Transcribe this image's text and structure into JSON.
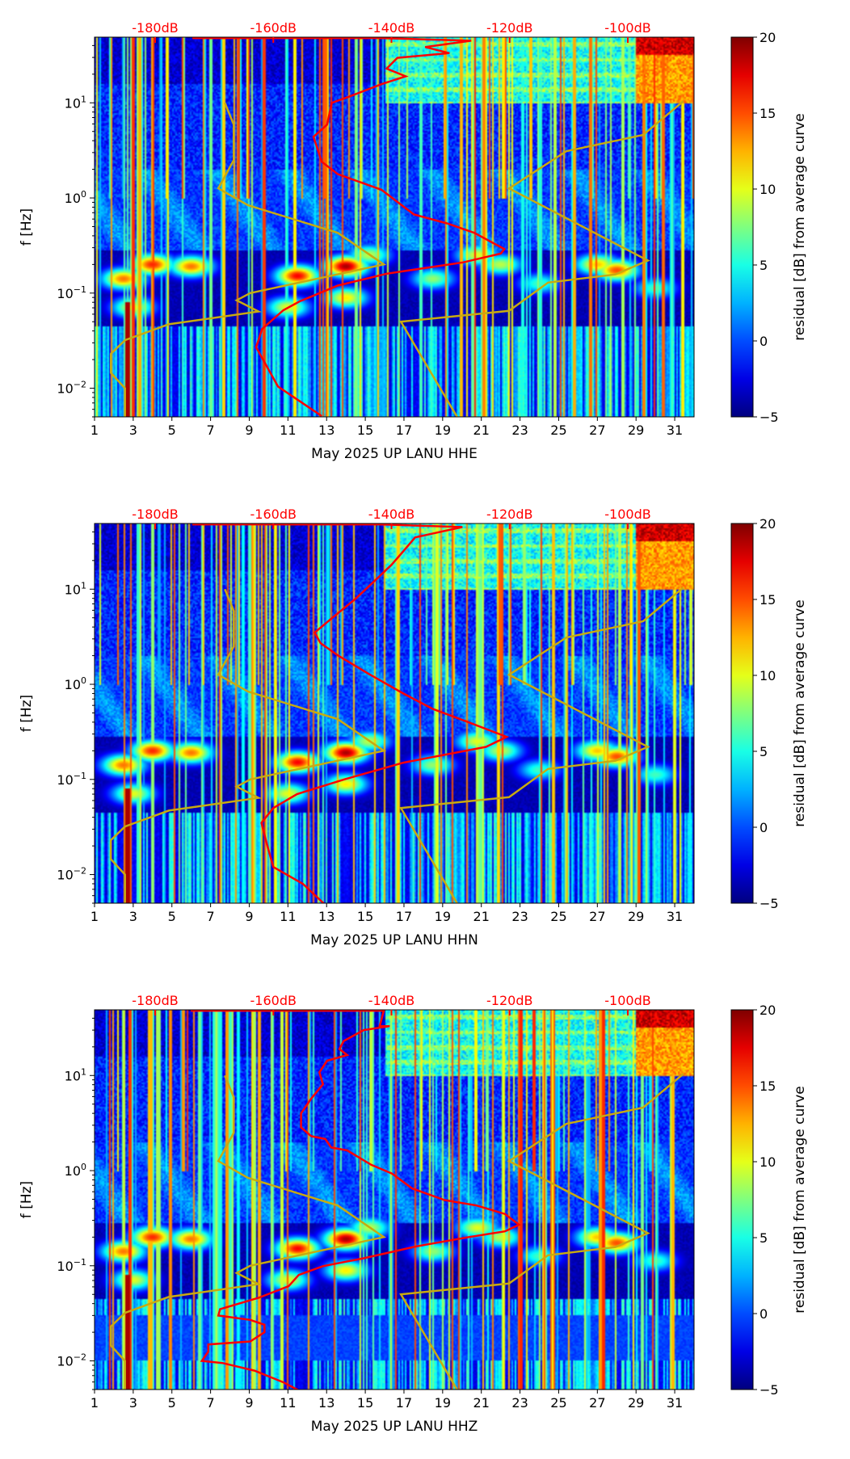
{
  "colors": {
    "nlnm_nhnm": "#c8aa10",
    "psd_curve": "#ff0000",
    "top_axis": "#ff0000",
    "axis": "#000000"
  },
  "axes_common": {
    "ylabel": "f [Hz]",
    "x_ticks": [
      "1",
      "3",
      "5",
      "7",
      "9",
      "11",
      "13",
      "15",
      "17",
      "19",
      "21",
      "23",
      "25",
      "27",
      "29",
      "31"
    ],
    "x_range_days": [
      1,
      32
    ],
    "y_range_hz": [
      0.005,
      49
    ],
    "y_scale": "log",
    "y_ticks": [
      {
        "base": "10",
        "exp": "−2",
        "value": 0.01
      },
      {
        "base": "10",
        "exp": "−1",
        "value": 0.1
      },
      {
        "base": "10",
        "exp": "0",
        "value": 1
      },
      {
        "base": "10",
        "exp": "1",
        "value": 10
      }
    ],
    "top_ticks": [
      {
        "label": "-180dB",
        "value": -180
      },
      {
        "label": "-160dB",
        "value": -160
      },
      {
        "label": "-140dB",
        "value": -140
      },
      {
        "label": "-120dB",
        "value": -120
      },
      {
        "label": "-100dB",
        "value": -100
      }
    ],
    "colorbar": {
      "label": "residual [dB] from average curve",
      "ticks": [
        "−5",
        "0",
        "5",
        "10",
        "15",
        "20"
      ],
      "values": [
        -5,
        0,
        5,
        10,
        15,
        20
      ],
      "range": [
        -5,
        20
      ],
      "colormap": "jet"
    }
  },
  "chart_data": [
    {
      "type": "heatmap",
      "title": "",
      "xlabel": "May 2025 UP LANU  HHE",
      "ylabel": "f [Hz]",
      "top_xlabel_unit": "dB",
      "low_noise_model": [
        [
          -168.2,
          10
        ],
        [
          -166.7,
          5.9
        ],
        [
          -166.7,
          2.5
        ],
        [
          -169.3,
          1.26
        ],
        [
          -164.3,
          0.84
        ],
        [
          -149.1,
          0.43
        ],
        [
          -141.3,
          0.2
        ],
        [
          -163.9,
          0.1
        ],
        [
          -166.2,
          0.084
        ],
        [
          -162.5,
          0.064
        ],
        [
          -177.7,
          0.047
        ],
        [
          -185.1,
          0.032
        ],
        [
          -187.5,
          0.023
        ],
        [
          -187.5,
          0.0145
        ],
        [
          -185.1,
          0.01
        ],
        [
          -185.1,
          0.005
        ]
      ],
      "high_noise_model": [
        [
          -90.6,
          10.4
        ],
        [
          -97.4,
          4.6
        ],
        [
          -110.4,
          3.1
        ],
        [
          -120.1,
          1.26
        ],
        [
          -96.6,
          0.22
        ],
        [
          -102.1,
          0.157
        ],
        [
          -113.5,
          0.129
        ],
        [
          -120.1,
          0.065
        ],
        [
          -138.4,
          0.05
        ],
        [
          -128.9,
          0.005
        ]
      ],
      "psd_curve": [
        [
          -173.7,
          48
        ],
        [
          -142,
          48
        ],
        [
          -126.5,
          45
        ],
        [
          -134.3,
          38.6
        ],
        [
          -130.2,
          33.3
        ],
        [
          -139,
          29.7
        ],
        [
          -140.8,
          22.9
        ],
        [
          -137.6,
          19
        ],
        [
          -141.7,
          15.7
        ],
        [
          -147.2,
          11.6
        ],
        [
          -150.1,
          10
        ],
        [
          -150.9,
          5.9
        ],
        [
          -153.2,
          4.4
        ],
        [
          -151.8,
          2.4
        ],
        [
          -149.1,
          1.78
        ],
        [
          -141.7,
          1.22
        ],
        [
          -136.2,
          0.67
        ],
        [
          -130.6,
          0.54
        ],
        [
          -126,
          0.43
        ],
        [
          -120.9,
          0.29
        ],
        [
          -121.5,
          0.26
        ],
        [
          -127.9,
          0.21
        ],
        [
          -140.8,
          0.16
        ],
        [
          -149.1,
          0.12
        ],
        [
          -155.5,
          0.082
        ],
        [
          -158.3,
          0.066
        ],
        [
          -161.9,
          0.042
        ],
        [
          -162.9,
          0.027
        ],
        [
          -159.2,
          0.0104
        ],
        [
          -151.8,
          0.0051
        ]
      ]
    },
    {
      "type": "heatmap",
      "title": "",
      "xlabel": "May 2025 UP LANU  HHN",
      "ylabel": "f [Hz]",
      "top_xlabel_unit": "dB",
      "low_noise_model": [
        [
          -168.2,
          10
        ],
        [
          -166.7,
          5.9
        ],
        [
          -166.7,
          2.5
        ],
        [
          -169.3,
          1.26
        ],
        [
          -164.3,
          0.84
        ],
        [
          -149.1,
          0.43
        ],
        [
          -141.3,
          0.2
        ],
        [
          -163.9,
          0.1
        ],
        [
          -166.2,
          0.084
        ],
        [
          -162.5,
          0.064
        ],
        [
          -177.7,
          0.047
        ],
        [
          -185.1,
          0.032
        ],
        [
          -187.5,
          0.023
        ],
        [
          -187.5,
          0.0145
        ],
        [
          -185.1,
          0.01
        ],
        [
          -185.1,
          0.005
        ]
      ],
      "high_noise_model": [
        [
          -90.6,
          10.4
        ],
        [
          -97.4,
          4.6
        ],
        [
          -110.4,
          3.1
        ],
        [
          -120.1,
          1.26
        ],
        [
          -96.6,
          0.22
        ],
        [
          -102.1,
          0.157
        ],
        [
          -113.5,
          0.129
        ],
        [
          -120.1,
          0.065
        ],
        [
          -138.4,
          0.05
        ],
        [
          -128.9,
          0.005
        ]
      ],
      "psd_curve": [
        [
          -173.7,
          48
        ],
        [
          -142,
          48
        ],
        [
          -128,
          45
        ],
        [
          -136,
          35
        ],
        [
          -138,
          25
        ],
        [
          -140,
          18
        ],
        [
          -143,
          12
        ],
        [
          -146,
          8
        ],
        [
          -150,
          5
        ],
        [
          -153,
          3.5
        ],
        [
          -152,
          2.7
        ],
        [
          -149,
          2
        ],
        [
          -144,
          1.3
        ],
        [
          -138,
          0.8
        ],
        [
          -133,
          0.55
        ],
        [
          -127,
          0.4
        ],
        [
          -120.5,
          0.28
        ],
        [
          -124,
          0.22
        ],
        [
          -138,
          0.15
        ],
        [
          -148,
          0.1
        ],
        [
          -156,
          0.07
        ],
        [
          -160,
          0.05
        ],
        [
          -162,
          0.035
        ],
        [
          -161,
          0.02
        ],
        [
          -160,
          0.012
        ],
        [
          -155,
          0.008
        ],
        [
          -151.5,
          0.005
        ]
      ]
    },
    {
      "type": "heatmap",
      "title": "",
      "xlabel": "May 2025 UP LANU  HHZ",
      "ylabel": "f [Hz]",
      "top_xlabel_unit": "dB",
      "low_noise_model": [
        [
          -168.2,
          10
        ],
        [
          -166.7,
          5.9
        ],
        [
          -166.7,
          2.5
        ],
        [
          -169.3,
          1.26
        ],
        [
          -164.3,
          0.84
        ],
        [
          -149.1,
          0.43
        ],
        [
          -141.3,
          0.2
        ],
        [
          -163.9,
          0.1
        ],
        [
          -166.2,
          0.084
        ],
        [
          -162.5,
          0.064
        ],
        [
          -177.7,
          0.047
        ],
        [
          -185.1,
          0.032
        ],
        [
          -187.5,
          0.023
        ],
        [
          -187.5,
          0.0145
        ],
        [
          -185.1,
          0.01
        ],
        [
          -185.1,
          0.005
        ]
      ],
      "high_noise_model": [
        [
          -90.6,
          10.4
        ],
        [
          -97.4,
          4.6
        ],
        [
          -110.4,
          3.1
        ],
        [
          -120.1,
          1.26
        ],
        [
          -96.6,
          0.22
        ],
        [
          -102.1,
          0.157
        ],
        [
          -113.5,
          0.129
        ],
        [
          -120.1,
          0.065
        ],
        [
          -138.4,
          0.05
        ],
        [
          -128.9,
          0.005
        ]
      ],
      "psd_curve": [
        [
          -174,
          48
        ],
        [
          -141.3,
          48
        ],
        [
          -142,
          33
        ],
        [
          -140.3,
          33
        ],
        [
          -144.7,
          30
        ],
        [
          -148.1,
          23
        ],
        [
          -148.8,
          19
        ],
        [
          -147.5,
          16.4
        ],
        [
          -150.9,
          14.3
        ],
        [
          -152.2,
          10.8
        ],
        [
          -151.6,
          8.1
        ],
        [
          -153.6,
          5.7
        ],
        [
          -155.3,
          4.0
        ],
        [
          -155.3,
          2.85
        ],
        [
          -153.6,
          2.3
        ],
        [
          -151.2,
          2.15
        ],
        [
          -150.2,
          1.75
        ],
        [
          -147.5,
          1.63
        ],
        [
          -143.4,
          1.15
        ],
        [
          -139.9,
          0.93
        ],
        [
          -136.5,
          0.65
        ],
        [
          -131,
          0.49
        ],
        [
          -125.6,
          0.43
        ],
        [
          -120.8,
          0.35
        ],
        [
          -118.4,
          0.27
        ],
        [
          -120.8,
          0.23
        ],
        [
          -126.9,
          0.2
        ],
        [
          -135.8,
          0.16
        ],
        [
          -139.9,
          0.14
        ],
        [
          -144.7,
          0.12
        ],
        [
          -151.6,
          0.099
        ],
        [
          -155.7,
          0.08
        ],
        [
          -157.4,
          0.061
        ],
        [
          -162.5,
          0.046
        ],
        [
          -169,
          0.035
        ],
        [
          -169.3,
          0.03
        ],
        [
          -163.9,
          0.027
        ],
        [
          -161.5,
          0.024
        ],
        [
          -161.5,
          0.02
        ],
        [
          -163.9,
          0.016
        ],
        [
          -171,
          0.0149
        ],
        [
          -171,
          0.0125
        ],
        [
          -172.1,
          0.01
        ],
        [
          -168.6,
          0.0095
        ],
        [
          -163.2,
          0.0079
        ],
        [
          -158.4,
          0.006
        ],
        [
          -155.7,
          0.0049
        ]
      ]
    }
  ]
}
